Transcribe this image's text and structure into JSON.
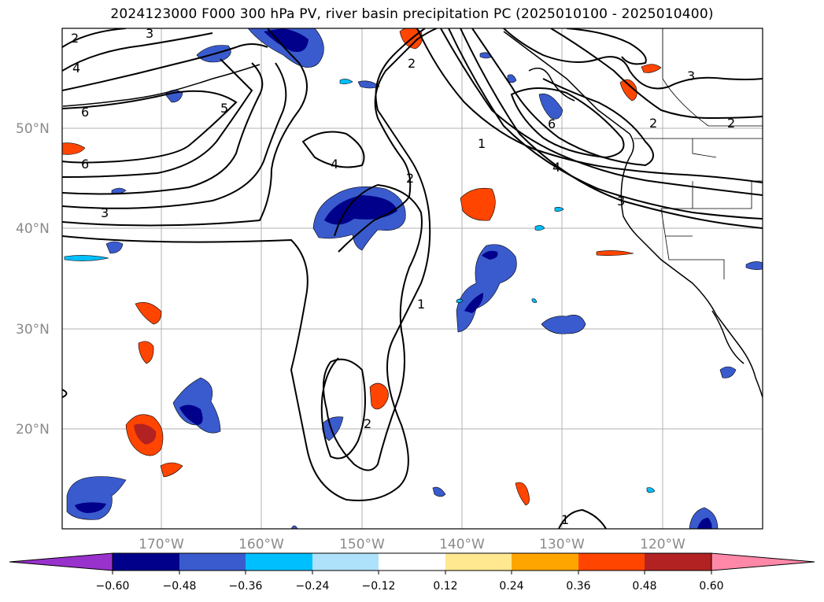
{
  "title": "2024123000 F000 300 hPa PV, river basin precipitation PC (2025010100 - 2025010400)",
  "map": {
    "lon_labels": [
      "170°W",
      "160°W",
      "150°W",
      "140°W",
      "130°W",
      "120°W"
    ],
    "lat_labels": [
      "50°N",
      "40°N",
      "30°N",
      "20°N"
    ],
    "contour_labels": [
      "2",
      "3",
      "4",
      "6",
      "6",
      "5",
      "3",
      "4",
      "2",
      "2",
      "1",
      "1",
      "2",
      "4",
      "6",
      "2",
      "3",
      "3",
      "1",
      "2"
    ]
  },
  "colorbar": {
    "ticks": [
      "−0.60",
      "−0.48",
      "−0.36",
      "−0.24",
      "−0.12",
      "0.12",
      "0.24",
      "0.36",
      "0.48",
      "0.60"
    ],
    "colors": [
      "#9932cc",
      "#00008b",
      "#3a5bcd",
      "#00bfff",
      "#aee2fa",
      "#ffffff",
      "#ffe88f",
      "#ffa500",
      "#ff4500",
      "#b22222",
      "#ff88a8"
    ]
  }
}
